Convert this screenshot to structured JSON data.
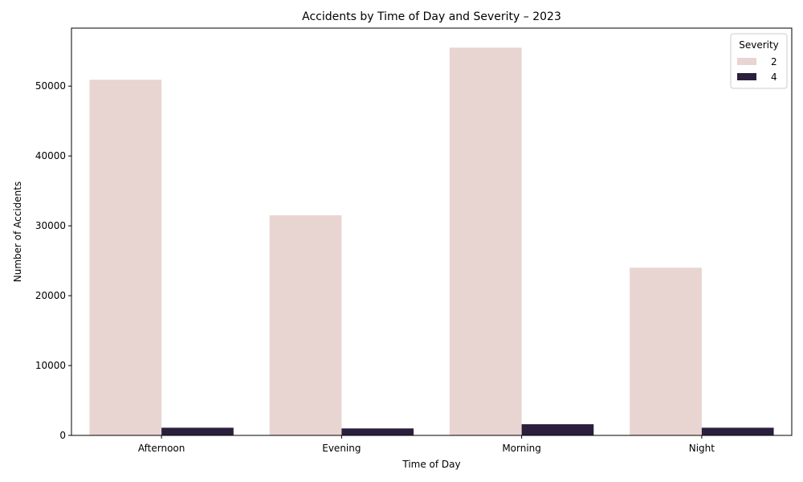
{
  "chart_data": {
    "type": "bar",
    "title": "Accidents by Time of Day and Severity – 2023",
    "xlabel": "Time of Day",
    "ylabel": "Number of Accidents",
    "categories": [
      "Afternoon",
      "Evening",
      "Morning",
      "Night"
    ],
    "series": [
      {
        "name": "2",
        "color": "#e8d4d1",
        "values": [
          50900,
          31500,
          55500,
          24000
        ]
      },
      {
        "name": "4",
        "color": "#2b1f3d",
        "values": [
          1100,
          1000,
          1600,
          1100
        ]
      }
    ],
    "ylim": [
      0,
      58300
    ],
    "yticks": [
      0,
      10000,
      20000,
      30000,
      40000,
      50000
    ],
    "grid": false,
    "legend": {
      "title": "Severity",
      "placement": "top-right"
    }
  }
}
